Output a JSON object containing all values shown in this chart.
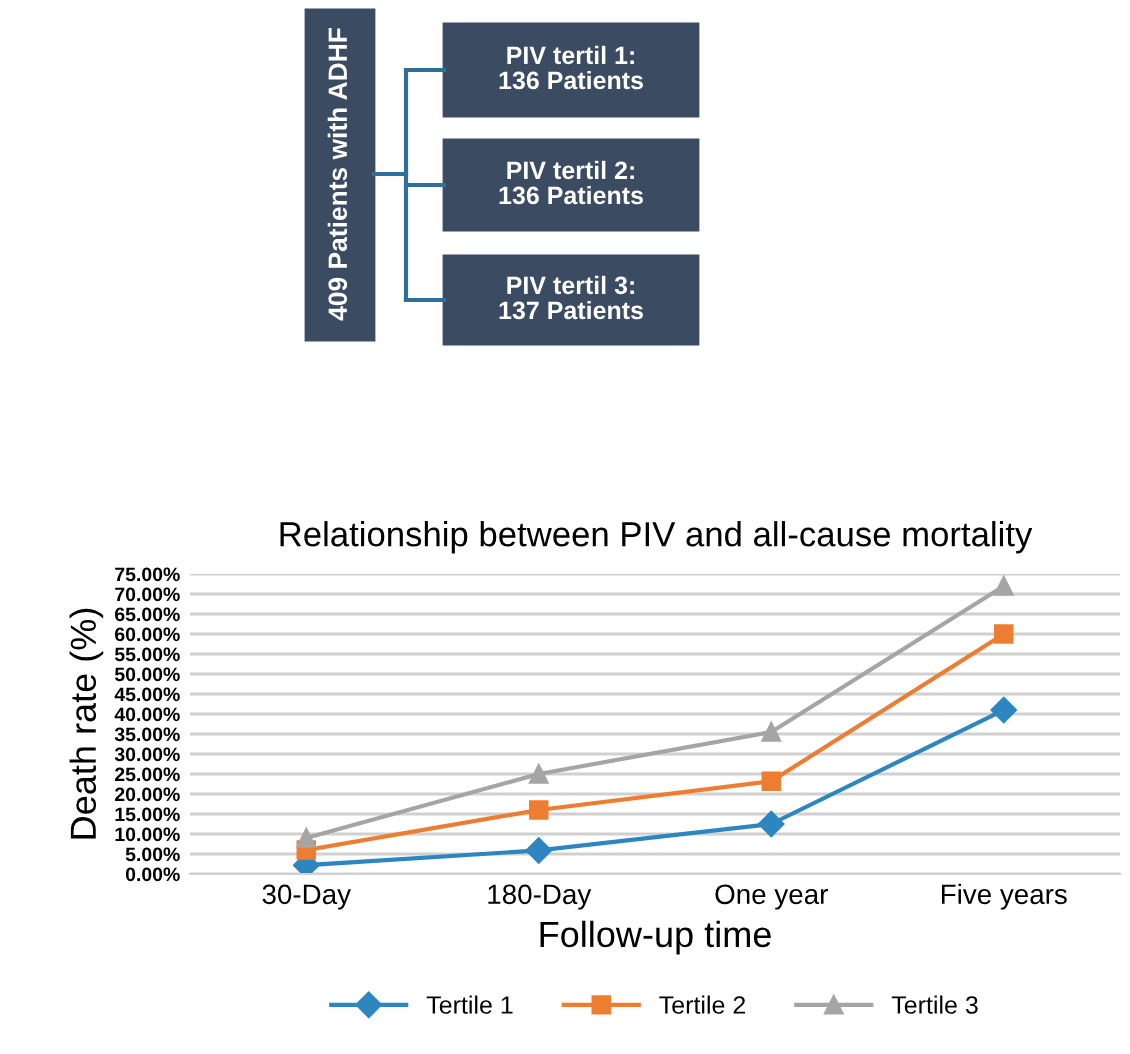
{
  "chart_data": [
    {
      "type": "other",
      "annotations": [
        "409 Patients with ADHF",
        "PIV tertil 1:\n136 Patients",
        "PIV tertil 2:\n136 Patients",
        "PIV tertil 3:\n137 Patients"
      ]
    },
    {
      "type": "line",
      "title": "Relationship between PIV and all-cause mortality",
      "xlabel": "Follow-up time",
      "ylabel": "Death rate (%)",
      "categories": [
        "30-Day",
        "180-Day",
        "One year",
        "Five years"
      ],
      "series": [
        {
          "name": "Tertile 1",
          "color": "#2e86c1",
          "marker": "diamond",
          "values": [
            2.2,
            5.9,
            12.5,
            41
          ]
        },
        {
          "name": "Tertile 2",
          "color": "#ed7d31",
          "marker": "square",
          "values": [
            6,
            16,
            23.2,
            60
          ]
        },
        {
          "name": "Tertile 3",
          "color": "#a5a5a5",
          "marker": "triangle",
          "values": [
            9,
            25,
            35.5,
            72
          ]
        }
      ],
      "ylim": [
        0,
        75
      ],
      "yticks": [
        {
          "value": 0,
          "label": "0.00%"
        },
        {
          "value": 5,
          "label": "5.00%"
        },
        {
          "value": 10,
          "label": "10.00%"
        },
        {
          "value": 15,
          "label": "15.00%"
        },
        {
          "value": 20,
          "label": "20.00%"
        },
        {
          "value": 25,
          "label": "25.00%"
        },
        {
          "value": 30,
          "label": "30.00%"
        },
        {
          "value": 35,
          "label": "35.00%"
        },
        {
          "value": 40,
          "label": "40.00%"
        },
        {
          "value": 45,
          "label": "45.00%"
        },
        {
          "value": 50,
          "label": "50.00%"
        },
        {
          "value": 55,
          "label": "55.00%"
        },
        {
          "value": 60,
          "label": "60.00%"
        },
        {
          "value": 65,
          "label": "65.00%"
        },
        {
          "value": 70,
          "label": "70.00%"
        },
        {
          "value": 75,
          "label": "75.00%"
        }
      ],
      "grid": "y",
      "legend": "bottom",
      "line_style": "solid"
    }
  ]
}
